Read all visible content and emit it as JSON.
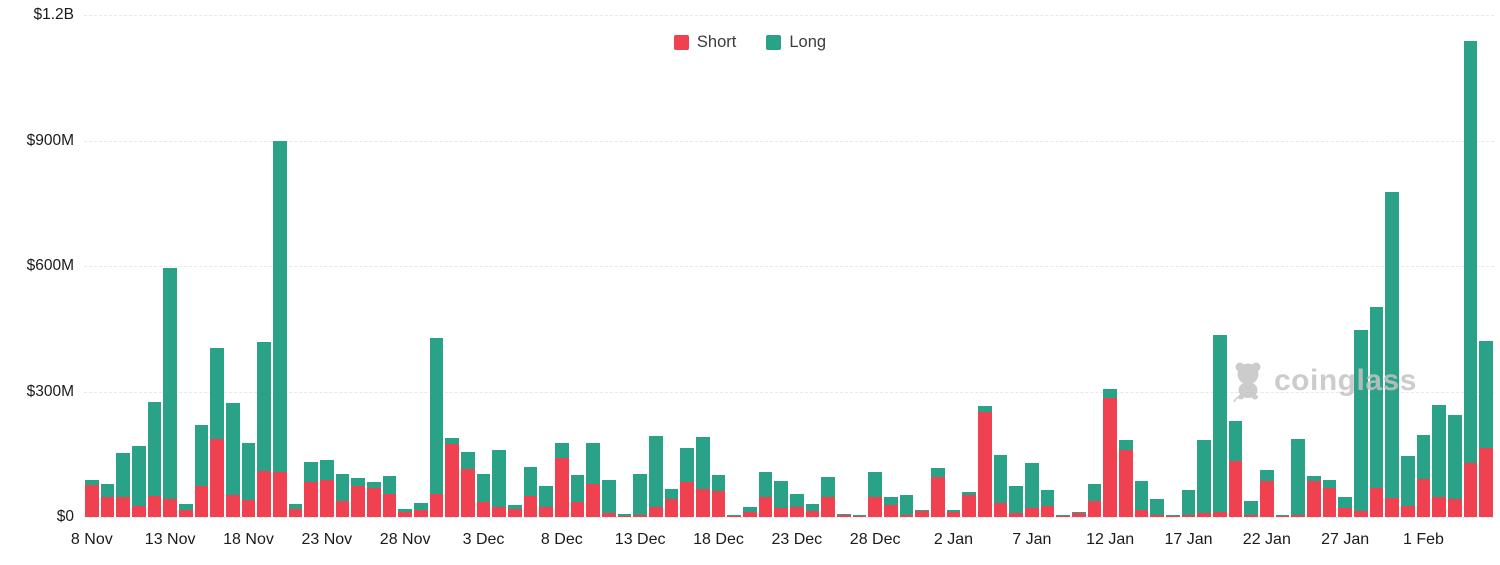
{
  "legend": {
    "short_label": "Short",
    "long_label": "Long"
  },
  "colors": {
    "short": "#f04150",
    "long": "#2aa287",
    "grid": "#e8e8e8",
    "axis_text": "#1b1b1b",
    "watermark": "#c4c4c4"
  },
  "watermark": {
    "text": "coinglass",
    "icon": "coinglass-bear-icon"
  },
  "chart_data": {
    "type": "bar",
    "stacked": true,
    "unit": "USD millions",
    "grid": "dashed-horizontal",
    "legend_position": "top-center",
    "ylim": [
      0,
      1200
    ],
    "yticks": [
      {
        "value": 0,
        "label": "$0"
      },
      {
        "value": 300,
        "label": "$300M"
      },
      {
        "value": 600,
        "label": "$600M"
      },
      {
        "value": 900,
        "label": "$900M"
      },
      {
        "value": 1200,
        "label": "$1.2B"
      }
    ],
    "xtick_every": 5,
    "xtick_labels": [
      "8 Nov",
      "13 Nov",
      "18 Nov",
      "23 Nov",
      "28 Nov",
      "3 Dec",
      "8 Dec",
      "13 Dec",
      "18 Dec",
      "23 Dec",
      "28 Dec",
      "2 Jan",
      "7 Jan",
      "12 Jan",
      "17 Jan",
      "22 Jan",
      "27 Jan",
      "1 Feb"
    ],
    "categories": [
      "8 Nov",
      "9 Nov",
      "10 Nov",
      "11 Nov",
      "12 Nov",
      "13 Nov",
      "14 Nov",
      "15 Nov",
      "16 Nov",
      "17 Nov",
      "18 Nov",
      "19 Nov",
      "20 Nov",
      "21 Nov",
      "22 Nov",
      "23 Nov",
      "24 Nov",
      "25 Nov",
      "26 Nov",
      "27 Nov",
      "28 Nov",
      "29 Nov",
      "30 Nov",
      "1 Dec",
      "2 Dec",
      "3 Dec",
      "4 Dec",
      "5 Dec",
      "6 Dec",
      "7 Dec",
      "8 Dec",
      "9 Dec",
      "10 Dec",
      "11 Dec",
      "12 Dec",
      "13 Dec",
      "14 Dec",
      "15 Dec",
      "16 Dec",
      "17 Dec",
      "18 Dec",
      "19 Dec",
      "20 Dec",
      "21 Dec",
      "22 Dec",
      "23 Dec",
      "24 Dec",
      "25 Dec",
      "26 Dec",
      "27 Dec",
      "28 Dec",
      "29 Dec",
      "30 Dec",
      "31 Dec",
      "1 Jan",
      "2 Jan",
      "3 Jan",
      "4 Jan",
      "5 Jan",
      "6 Jan",
      "7 Jan",
      "8 Jan",
      "9 Jan",
      "10 Jan",
      "11 Jan",
      "12 Jan",
      "13 Jan",
      "14 Jan",
      "15 Jan",
      "16 Jan",
      "17 Jan",
      "18 Jan",
      "19 Jan",
      "20 Jan",
      "21 Jan",
      "22 Jan",
      "23 Jan",
      "24 Jan",
      "25 Jan",
      "26 Jan",
      "27 Jan",
      "28 Jan",
      "29 Jan",
      "30 Jan",
      "31 Jan",
      "1 Feb",
      "2 Feb",
      "3 Feb",
      "4 Feb",
      "5 Feb"
    ],
    "series": [
      {
        "name": "Short",
        "color": "#f04150",
        "values": [
          77,
          48,
          47,
          26,
          51,
          44,
          16,
          73,
          187,
          53,
          41,
          111,
          108,
          19,
          84,
          88,
          38,
          75,
          69,
          55,
          13,
          17,
          55,
          175,
          114,
          35,
          25,
          20,
          50,
          24,
          141,
          37,
          79,
          9,
          3,
          5,
          25,
          43,
          83,
          68,
          63,
          2,
          11,
          49,
          21,
          24,
          14,
          48,
          4,
          2,
          47,
          29,
          6,
          14,
          95,
          11,
          53,
          252,
          33,
          9,
          21,
          26,
          1,
          9,
          39,
          284,
          160,
          16,
          4,
          2,
          6,
          10,
          11,
          133,
          6,
          86,
          2,
          5,
          85,
          69,
          21,
          14,
          70,
          45,
          26,
          91,
          47,
          43,
          130,
          164
        ]
      },
      {
        "name": "Long",
        "color": "#2aa287",
        "values": [
          12,
          30,
          105,
          143,
          223,
          552,
          16,
          146,
          216,
          219,
          137,
          307,
          790,
          11,
          48,
          48,
          64,
          19,
          14,
          43,
          5,
          16,
          374,
          15,
          42,
          69,
          136,
          9,
          70,
          51,
          36,
          63,
          98,
          79,
          4,
          97,
          169,
          24,
          82,
          124,
          37,
          2,
          14,
          59,
          66,
          30,
          16,
          47,
          4,
          2,
          60,
          20,
          46,
          2,
          21,
          5,
          7,
          13,
          115,
          66,
          109,
          39,
          2,
          3,
          40,
          22,
          23,
          69,
          39,
          3,
          59,
          174,
          424,
          96,
          32,
          26,
          3,
          181,
          14,
          19,
          27,
          433,
          431,
          733,
          121,
          104,
          221,
          201,
          1008,
          257
        ]
      }
    ]
  }
}
